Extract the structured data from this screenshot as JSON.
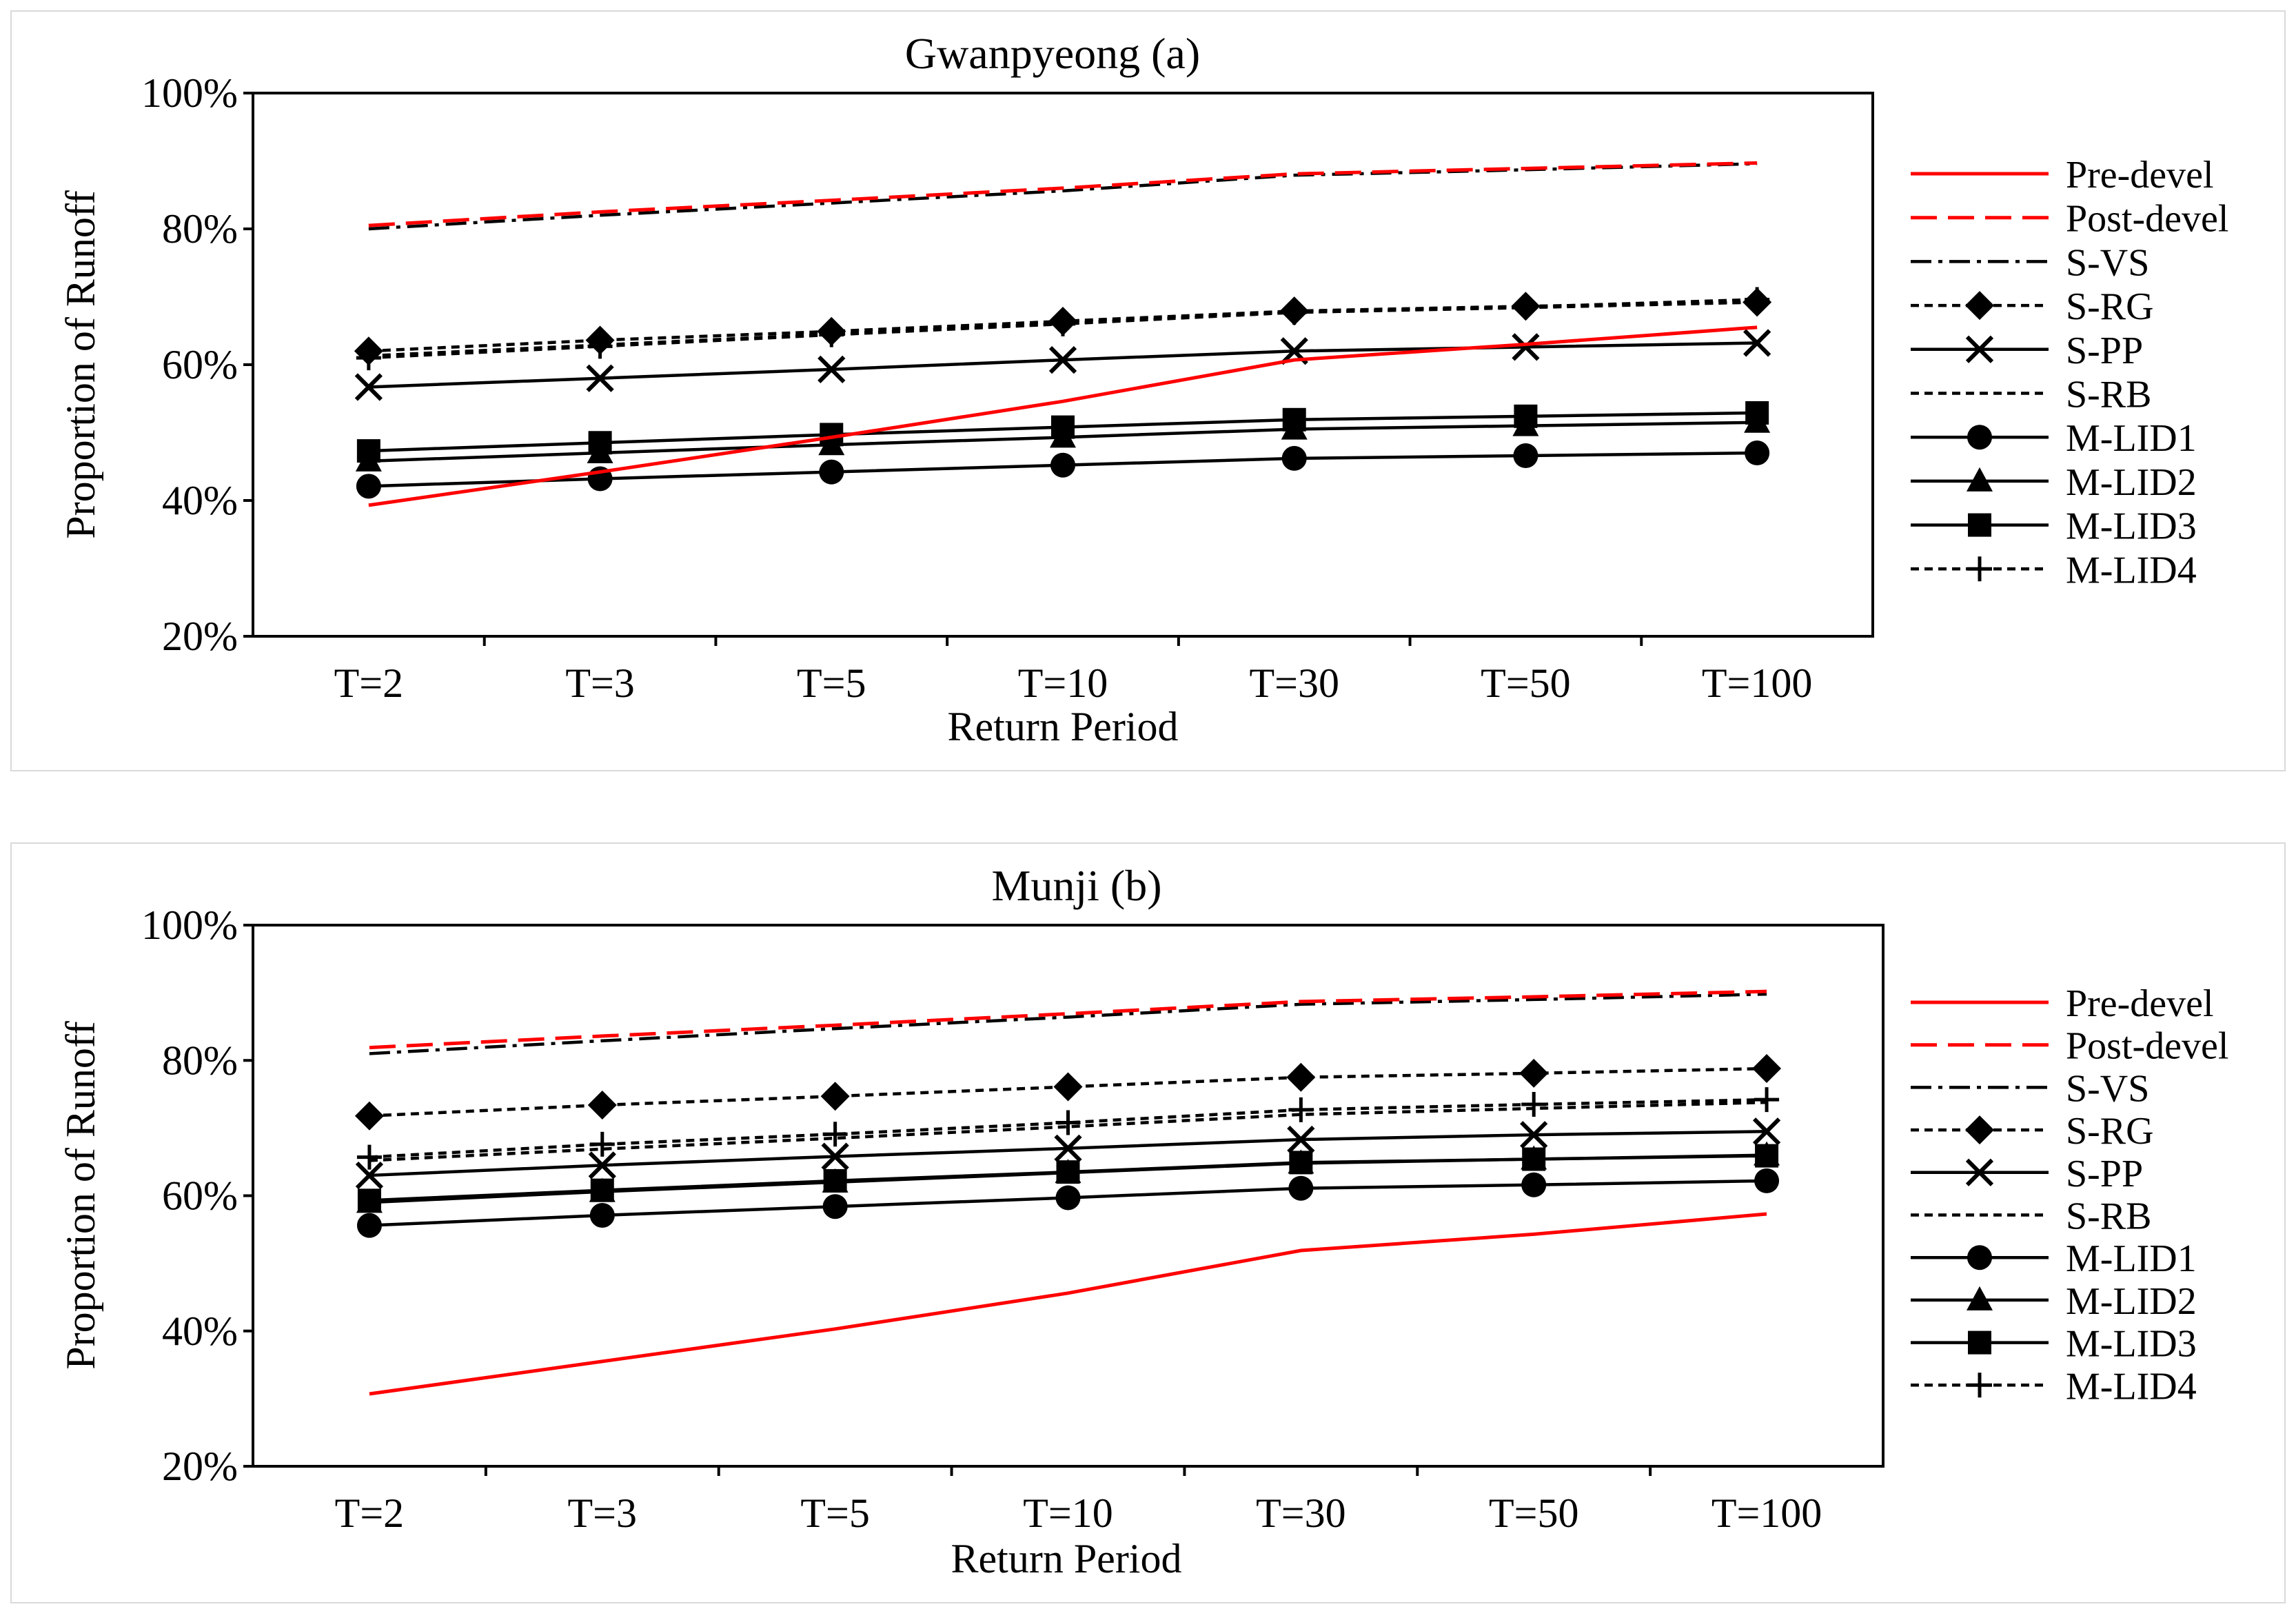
{
  "chart_data": [
    {
      "type": "line",
      "title": "Gwanpyeong (a)",
      "xlabel": "Return Period",
      "ylabel": "Proportion of Runoff",
      "categories": [
        "T=2",
        "T=3",
        "T=5",
        "T=10",
        "T=30",
        "T=50",
        "T=100"
      ],
      "yticks": [
        "20%",
        "40%",
        "60%",
        "80%",
        "100%"
      ],
      "ylim": [
        20,
        100
      ],
      "legend_position": "right",
      "series": [
        {
          "name": "Pre-devel",
          "color": "#ff0000",
          "dash": "solid",
          "marker": "none",
          "values": [
            39.3,
            44.2,
            49.3,
            54.6,
            60.7,
            63.0,
            65.5
          ]
        },
        {
          "name": "Post-devel",
          "color": "#ff0000",
          "dash": "long",
          "marker": "none",
          "values": [
            80.5,
            82.5,
            84.2,
            86.0,
            88.1,
            88.9,
            89.7
          ]
        },
        {
          "name": "S-VS",
          "color": "#000000",
          "dash": "dashdot",
          "marker": "none",
          "values": [
            80.0,
            82.0,
            83.8,
            85.6,
            87.9,
            88.7,
            89.6
          ]
        },
        {
          "name": "S-RG",
          "color": "#000000",
          "dash": "short",
          "marker": "diamond",
          "values": [
            62.0,
            63.6,
            64.9,
            66.4,
            67.9,
            68.6,
            69.2
          ]
        },
        {
          "name": "S-PP",
          "color": "#000000",
          "dash": "solid",
          "marker": "x",
          "values": [
            56.7,
            58.0,
            59.3,
            60.7,
            62.0,
            62.6,
            63.2
          ]
        },
        {
          "name": "S-RB",
          "color": "#000000",
          "dash": "short",
          "marker": "none",
          "values": [
            61.3,
            62.9,
            64.5,
            66.1,
            67.7,
            68.4,
            69.2
          ]
        },
        {
          "name": "M-LID1",
          "color": "#000000",
          "dash": "solid",
          "marker": "circle",
          "values": [
            42.1,
            43.2,
            44.2,
            45.2,
            46.2,
            46.6,
            47.0
          ]
        },
        {
          "name": "M-LID2",
          "color": "#000000",
          "dash": "solid",
          "marker": "triangle",
          "values": [
            45.8,
            47.0,
            48.2,
            49.3,
            50.5,
            51.0,
            51.5
          ]
        },
        {
          "name": "M-LID3",
          "color": "#000000",
          "dash": "solid",
          "marker": "square",
          "values": [
            47.3,
            48.5,
            49.7,
            50.8,
            51.9,
            52.4,
            52.9
          ]
        },
        {
          "name": "M-LID4",
          "color": "#000000",
          "dash": "short",
          "marker": "plus",
          "values": [
            61.0,
            62.7,
            64.4,
            66.0,
            67.7,
            68.5,
            69.6
          ]
        }
      ]
    },
    {
      "type": "line",
      "title": "Munji (b)",
      "xlabel": "Return Period",
      "ylabel": "Proportion of Runoff",
      "categories": [
        "T=2",
        "T=3",
        "T=5",
        "T=10",
        "T=30",
        "T=50",
        "T=100"
      ],
      "yticks": [
        "20%",
        "40%",
        "60%",
        "80%",
        "100%"
      ],
      "ylim": [
        20,
        100
      ],
      "legend_position": "right",
      "series": [
        {
          "name": "Pre-devel",
          "color": "#ff0000",
          "dash": "solid",
          "marker": "none",
          "values": [
            30.7,
            35.5,
            40.3,
            45.6,
            51.9,
            54.3,
            57.3
          ]
        },
        {
          "name": "Post-devel",
          "color": "#ff0000",
          "dash": "long",
          "marker": "none",
          "values": [
            81.9,
            83.6,
            85.2,
            86.9,
            88.7,
            89.4,
            90.2
          ]
        },
        {
          "name": "S-VS",
          "color": "#000000",
          "dash": "dashdot",
          "marker": "none",
          "values": [
            81.0,
            82.9,
            84.7,
            86.4,
            88.3,
            89.0,
            89.8
          ]
        },
        {
          "name": "S-RG",
          "color": "#000000",
          "dash": "short",
          "marker": "diamond",
          "values": [
            71.8,
            73.4,
            74.7,
            76.1,
            77.5,
            78.1,
            78.8
          ]
        },
        {
          "name": "S-PP",
          "color": "#000000",
          "dash": "solid",
          "marker": "x",
          "values": [
            63.0,
            64.5,
            65.8,
            67.0,
            68.3,
            69.0,
            69.5
          ]
        },
        {
          "name": "S-RB",
          "color": "#000000",
          "dash": "short",
          "marker": "none",
          "values": [
            65.2,
            66.9,
            68.5,
            70.2,
            72.0,
            72.9,
            73.8
          ]
        },
        {
          "name": "M-LID1",
          "color": "#000000",
          "dash": "solid",
          "marker": "circle",
          "values": [
            55.6,
            57.1,
            58.4,
            59.7,
            61.1,
            61.6,
            62.2
          ]
        },
        {
          "name": "M-LID2",
          "color": "#000000",
          "dash": "solid",
          "marker": "triangle",
          "values": [
            59.0,
            60.6,
            62.0,
            63.4,
            64.8,
            65.4,
            66.0
          ]
        },
        {
          "name": "M-LID3",
          "color": "#000000",
          "dash": "solid",
          "marker": "square",
          "values": [
            59.3,
            60.8,
            62.2,
            63.5,
            64.9,
            65.4,
            65.9
          ]
        },
        {
          "name": "M-LID4",
          "color": "#000000",
          "dash": "short",
          "marker": "plus",
          "values": [
            65.7,
            67.6,
            69.1,
            70.8,
            72.7,
            73.5,
            74.2
          ]
        }
      ]
    }
  ]
}
